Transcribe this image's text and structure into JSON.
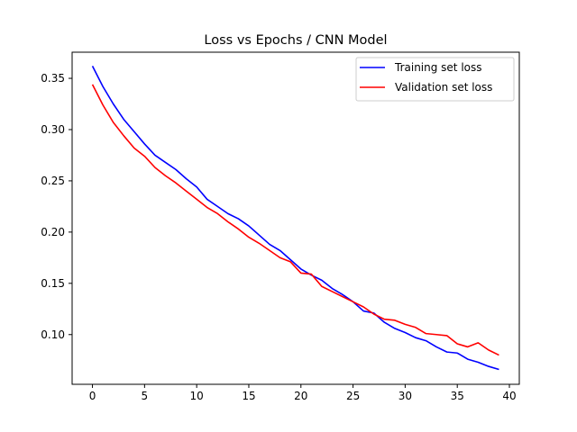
{
  "chart_data": {
    "type": "line",
    "title": "Loss vs Epochs / CNN Model",
    "xlabel": "",
    "ylabel": "",
    "xlim": [
      -1.95,
      40.95
    ],
    "ylim": [
      0.0515,
      0.3755
    ],
    "xticks": [
      0,
      5,
      10,
      15,
      20,
      25,
      30,
      35,
      40
    ],
    "yticks": [
      0.1,
      0.15,
      0.2,
      0.25,
      0.3,
      0.35
    ],
    "ytick_labels": [
      "0.10",
      "0.15",
      "0.20",
      "0.25",
      "0.30",
      "0.35"
    ],
    "grid": false,
    "legend_position": "top-right",
    "x": [
      0,
      1,
      2,
      3,
      4,
      5,
      6,
      7,
      8,
      9,
      10,
      11,
      12,
      13,
      14,
      15,
      16,
      17,
      18,
      19,
      20,
      21,
      22,
      23,
      24,
      25,
      26,
      27,
      28,
      29,
      30,
      31,
      32,
      33,
      34,
      35,
      36,
      37,
      38,
      39
    ],
    "series": [
      {
        "name": "Training set loss",
        "color": "#0000ff",
        "values": [
          0.362,
          0.342,
          0.325,
          0.31,
          0.298,
          0.286,
          0.275,
          0.268,
          0.261,
          0.252,
          0.244,
          0.232,
          0.225,
          0.218,
          0.213,
          0.206,
          0.197,
          0.188,
          0.182,
          0.173,
          0.164,
          0.158,
          0.153,
          0.145,
          0.139,
          0.132,
          0.123,
          0.121,
          0.112,
          0.106,
          0.102,
          0.097,
          0.094,
          0.088,
          0.083,
          0.082,
          0.076,
          0.073,
          0.069,
          0.066
        ]
      },
      {
        "name": "Validation set loss",
        "color": "#ff0000",
        "values": [
          0.344,
          0.324,
          0.307,
          0.294,
          0.282,
          0.274,
          0.263,
          0.255,
          0.248,
          0.24,
          0.232,
          0.224,
          0.218,
          0.21,
          0.203,
          0.195,
          0.189,
          0.182,
          0.175,
          0.171,
          0.16,
          0.159,
          0.147,
          0.142,
          0.137,
          0.132,
          0.127,
          0.12,
          0.115,
          0.114,
          0.11,
          0.107,
          0.101,
          0.1,
          0.099,
          0.091,
          0.088,
          0.092,
          0.085,
          0.08
        ]
      }
    ]
  }
}
